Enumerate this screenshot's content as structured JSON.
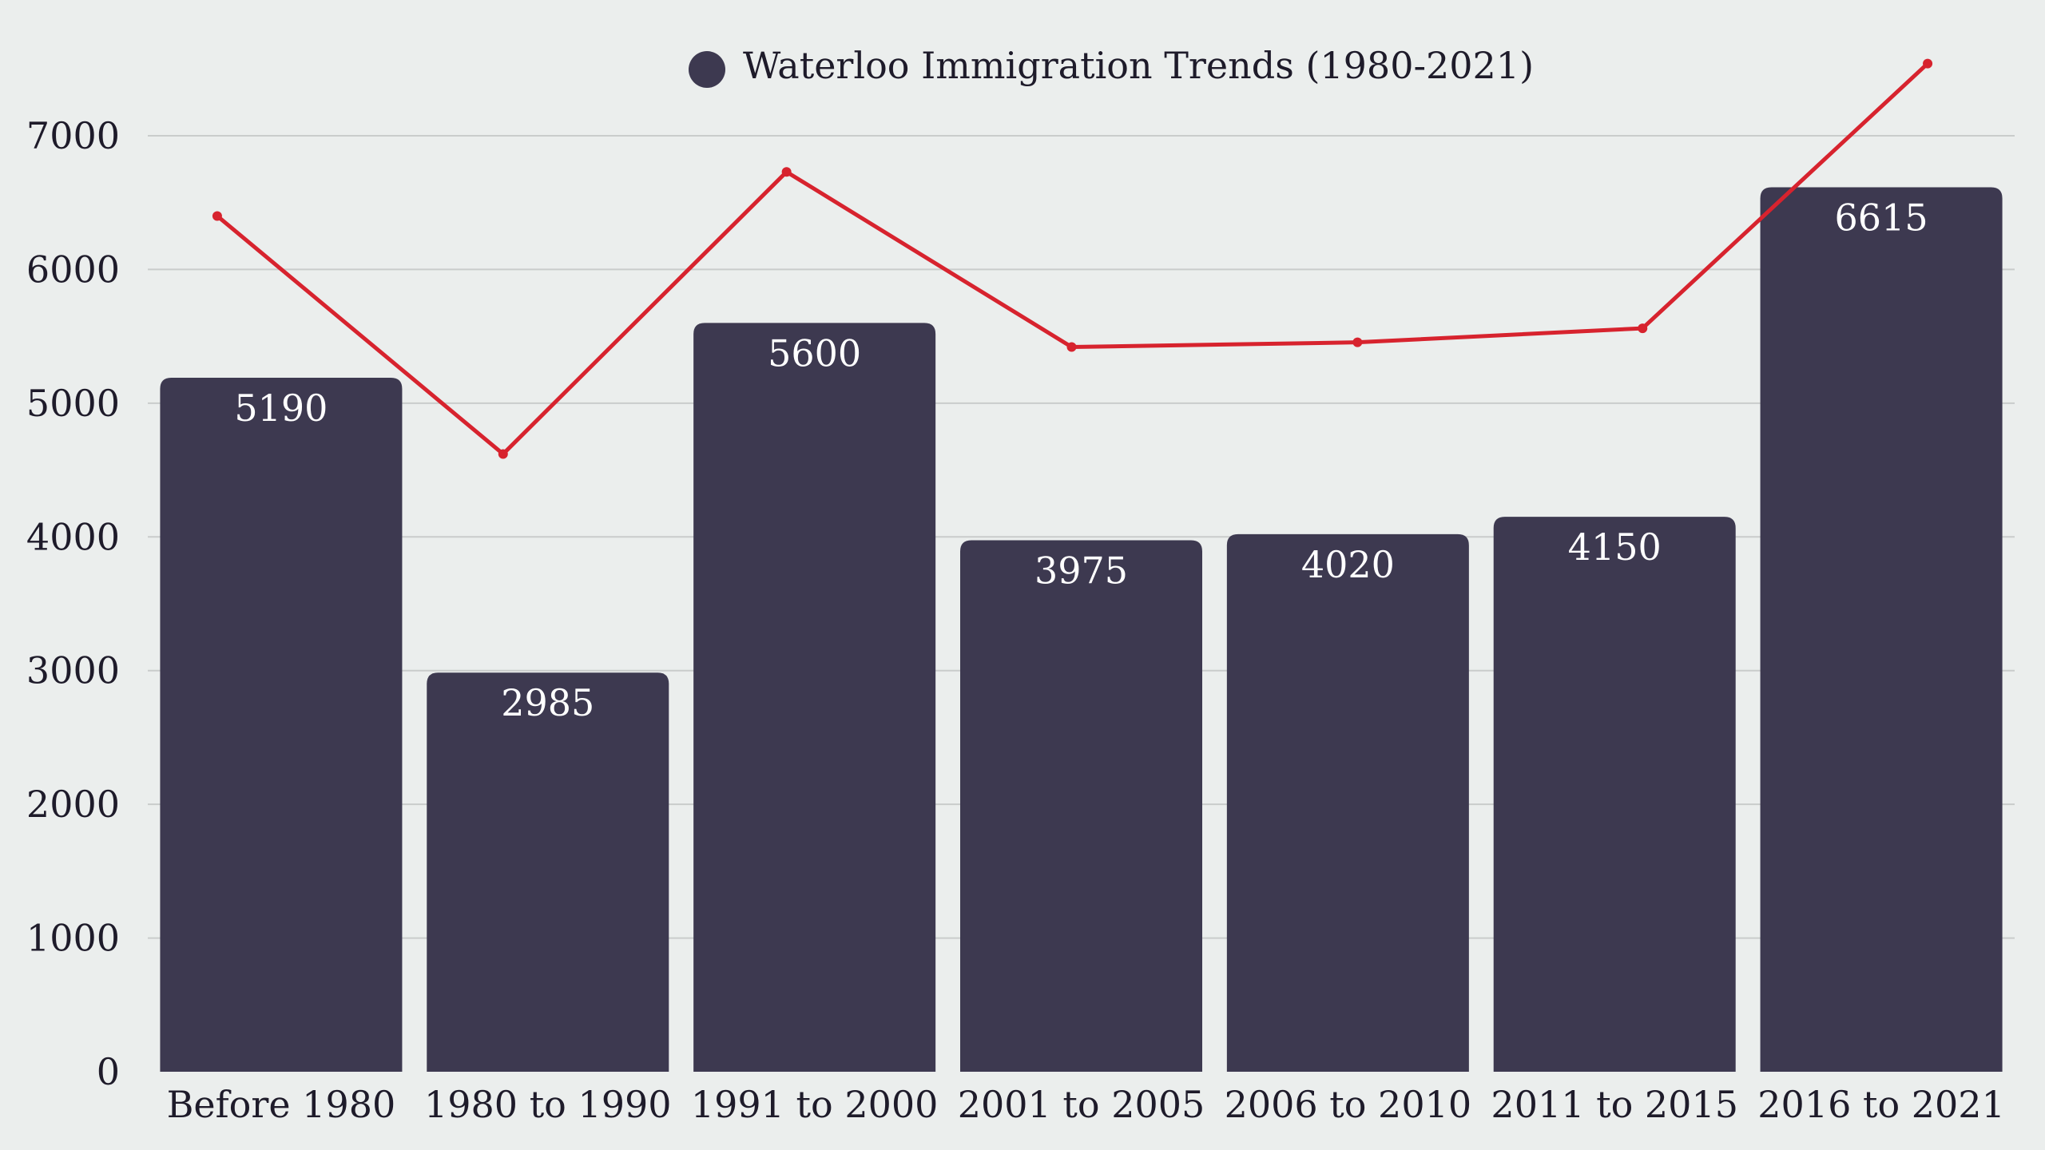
{
  "chart_data": {
    "type": "bar",
    "title": "",
    "xlabel": "",
    "ylabel": "",
    "categories": [
      "Before 1980",
      "1980 to 1990",
      "1991 to 2000",
      "2001 to 2005",
      "2006 to 2010",
      "2011 to 2015",
      "2016 to 2021"
    ],
    "series": [
      {
        "name": "Waterloo Immigration Trends (1980-2021)",
        "type": "bar",
        "values": [
          5190,
          2985,
          5600,
          3975,
          4020,
          4150,
          6615
        ],
        "color": "#3d3950"
      },
      {
        "type": "line",
        "values": [
          6400,
          4620,
          6730,
          5420,
          5455,
          5560,
          7540
        ],
        "color": "#d7232e"
      }
    ],
    "ylim": [
      0,
      7000
    ],
    "yticks": [
      "0",
      "1000",
      "2000",
      "3000",
      "4000",
      "5000",
      "6000",
      "7000"
    ],
    "ytick_values": [
      0,
      1000,
      2000,
      3000,
      4000,
      5000,
      6000,
      7000
    ],
    "grid": true,
    "legend": {
      "position": "top-center",
      "label": "Waterloo Immigration Trends (1980-2021)"
    },
    "bar_value_labels": [
      "5190",
      "2985",
      "5600",
      "3975",
      "4020",
      "4150",
      "6615"
    ]
  }
}
